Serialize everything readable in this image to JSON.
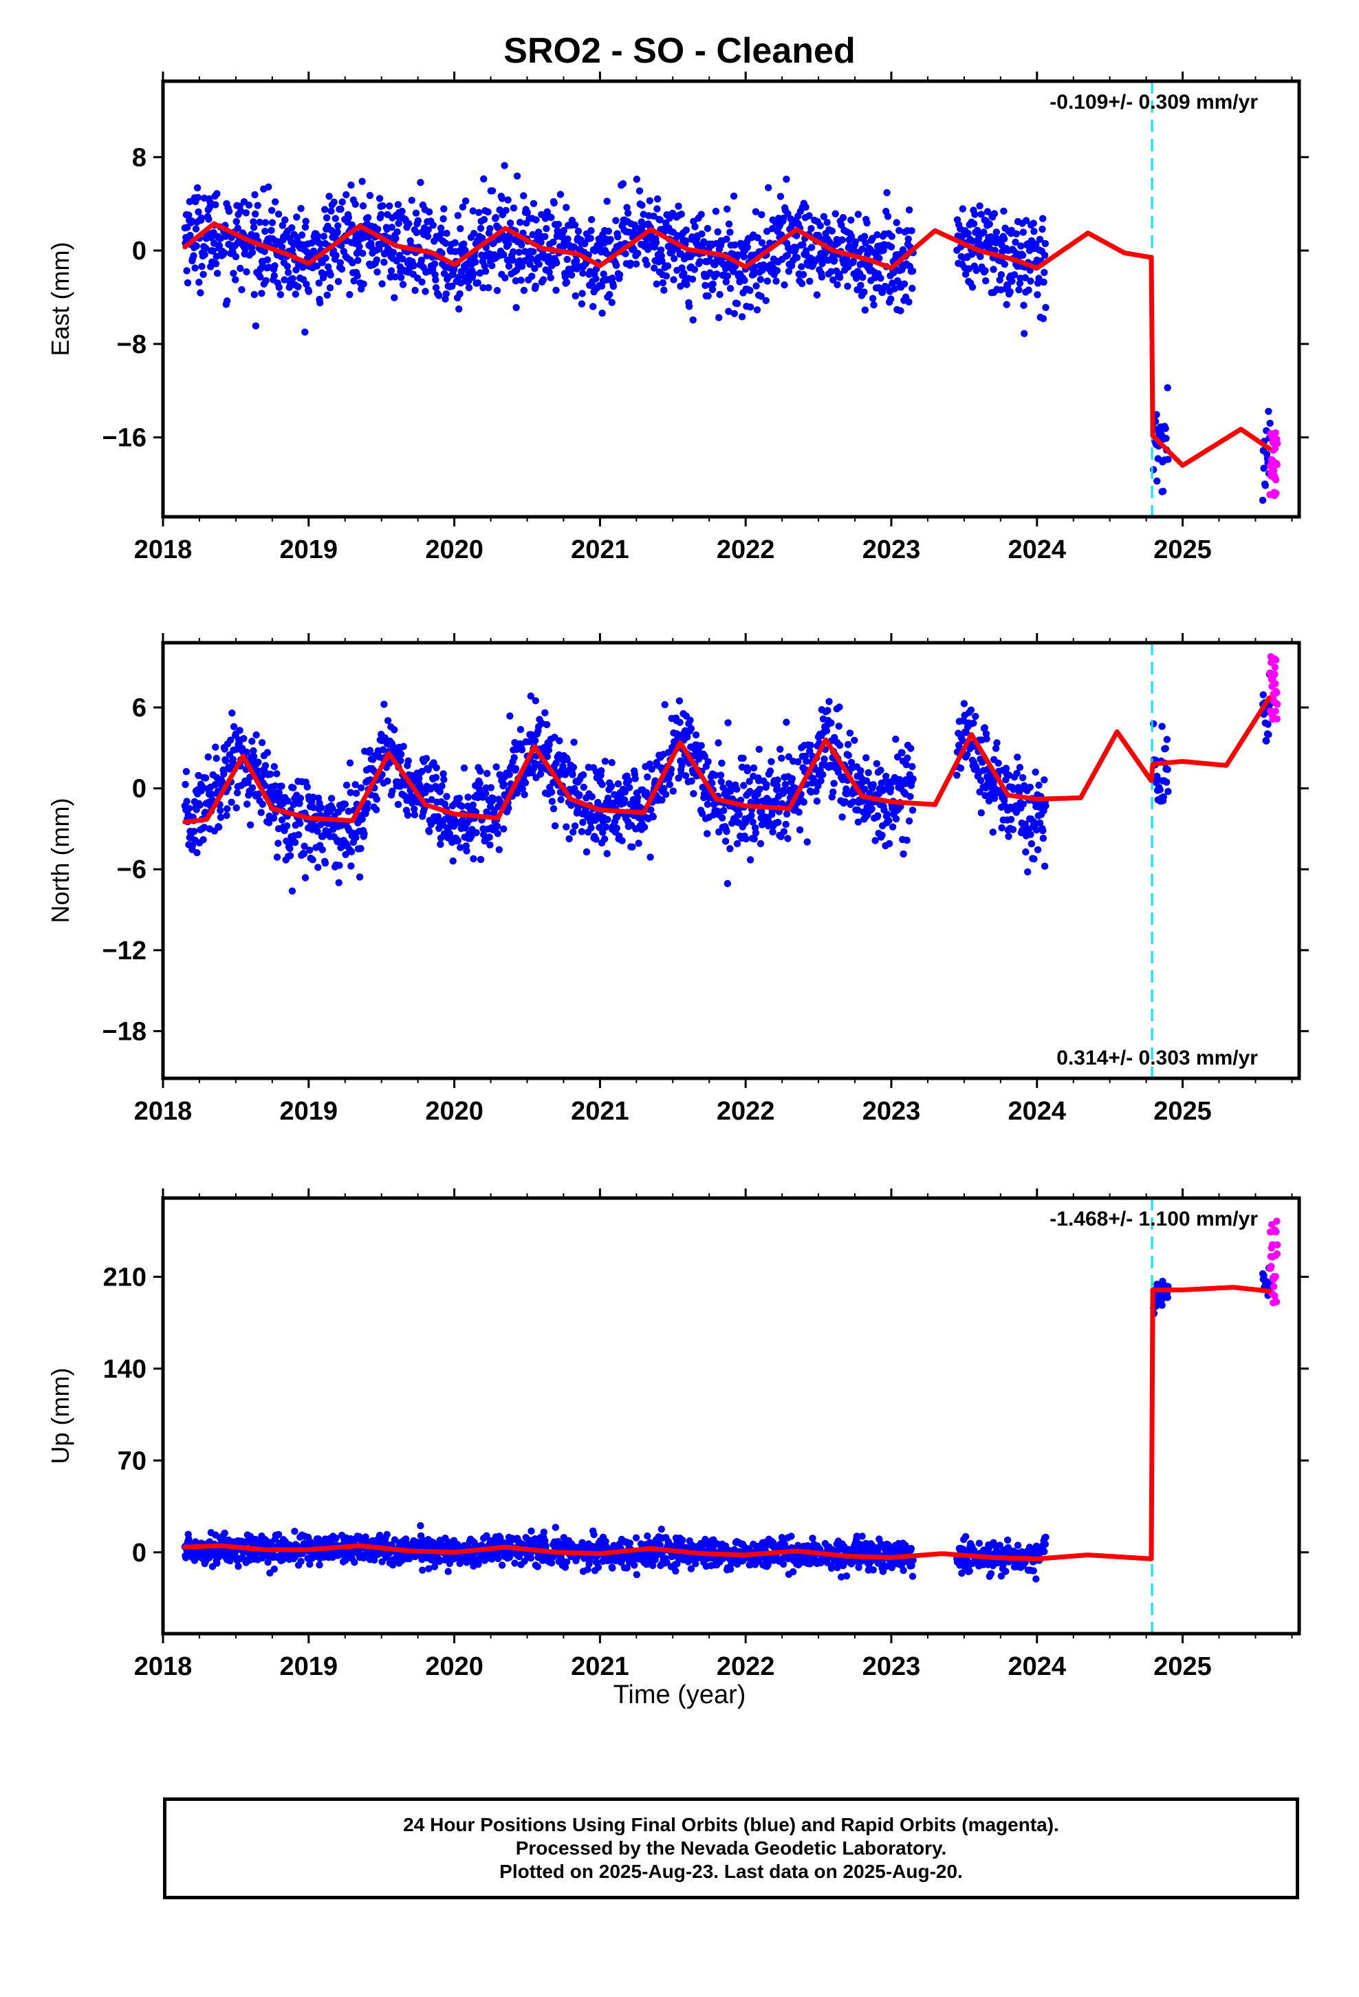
{
  "title": "SRO2  - SO - Cleaned",
  "x_axis_label": "Time (year)",
  "footer": {
    "line1": "24 Hour Positions Using Final Orbits (blue) and Rapid Orbits (magenta).",
    "line2": "Processed by the Nevada Geodetic Laboratory.",
    "line3": "Plotted on 2025-Aug-23. Last data on 2025-Aug-20."
  },
  "colors": {
    "final": "#0000ff",
    "rapid": "#ff00ff",
    "model": "#ff0000",
    "event": "#00e5ee",
    "frame": "#000000"
  },
  "chart_data": [
    {
      "type": "scatter",
      "component": "east",
      "ylabel": "East (mm)",
      "rate_label": "-0.109+/- 0.309 mm/yr",
      "rate_label_position": "top-right",
      "xlim": [
        2018.0,
        2025.8
      ],
      "ylim": [
        -22.8,
        14.5
      ],
      "xticks": [
        2018,
        2019,
        2020,
        2021,
        2022,
        2023,
        2024,
        2025
      ],
      "yticks": [
        8,
        0,
        -8,
        -16
      ],
      "ytick_labels": [
        "8",
        "0",
        "−8",
        "−16"
      ],
      "event_line_x": 2024.79,
      "final_segments": [
        [
          2018.15,
          2023.15
        ],
        [
          2023.45,
          2024.06
        ],
        [
          2024.8,
          2024.9
        ],
        [
          2025.55,
          2025.6
        ]
      ],
      "series": [
        {
          "x": [
            2018.2,
            2018.5,
            2018.8,
            2019.0,
            2019.3,
            2019.6,
            2020.0,
            2020.3,
            2020.6,
            2021.0,
            2021.3,
            2021.6,
            2022.0,
            2022.3,
            2022.6,
            2023.0,
            2023.2,
            2023.5,
            2023.8,
            2024.0,
            2024.85,
            2025.57
          ],
          "values": [
            1.5,
            1.0,
            0.0,
            -1.0,
            1.5,
            0.5,
            -1.0,
            1.5,
            0.0,
            -1.0,
            1.5,
            0.0,
            -1.5,
            1.0,
            0.0,
            -1.5,
            -0.5,
            0.5,
            -0.5,
            -1.0,
            -17.0,
            -17.5
          ]
        },
        {
          "x": [
            2025.6,
            2025.62,
            2025.65
          ],
          "values": [
            -15.5,
            -18.5,
            -21.0
          ]
        },
        {
          "x": [
            2018.15,
            2018.35,
            2018.6,
            2018.85,
            2019.0,
            2019.35,
            2019.6,
            2019.85,
            2020.0,
            2020.35,
            2020.6,
            2020.85,
            2021.0,
            2021.35,
            2021.6,
            2021.85,
            2022.0,
            2022.35,
            2022.6,
            2022.85,
            2023.0,
            2023.3,
            2023.6,
            2023.85,
            2024.0,
            2024.35,
            2024.6,
            2024.789,
            2024.791,
            2025.0,
            2025.4,
            2025.6
          ],
          "values": [
            0.3,
            2.3,
            0.8,
            -0.3,
            -1.1,
            2.1,
            0.4,
            -0.2,
            -1.2,
            1.9,
            0.2,
            -0.3,
            -1.3,
            1.8,
            0.1,
            -0.4,
            -1.4,
            1.8,
            0.0,
            -0.8,
            -1.5,
            1.7,
            0.0,
            -0.8,
            -1.5,
            1.5,
            -0.2,
            -0.6,
            -15.8,
            -18.4,
            -15.3,
            -17.0
          ]
        }
      ]
    },
    {
      "type": "scatter",
      "component": "north",
      "ylabel": "North (mm)",
      "rate_label": "0.314+/- 0.303 mm/yr",
      "rate_label_position": "bottom-right",
      "xlim": [
        2018.0,
        2025.8
      ],
      "ylim": [
        -21.5,
        10.8
      ],
      "xticks": [
        2018,
        2019,
        2020,
        2021,
        2022,
        2023,
        2024,
        2025
      ],
      "yticks": [
        6,
        0,
        -6,
        -12,
        -18
      ],
      "ytick_labels": [
        "6",
        "0",
        "−6",
        "−12",
        "−18"
      ],
      "event_line_x": 2024.79,
      "final_segments": [
        [
          2018.15,
          2023.15
        ],
        [
          2023.45,
          2024.06
        ],
        [
          2024.8,
          2024.9
        ],
        [
          2025.55,
          2025.6
        ]
      ],
      "series": [
        {
          "x": [
            2018.2,
            2018.5,
            2018.8,
            2019.0,
            2019.3,
            2019.5,
            2019.8,
            2020.0,
            2020.3,
            2020.55,
            2020.8,
            2021.0,
            2021.3,
            2021.55,
            2021.8,
            2022.0,
            2022.3,
            2022.55,
            2022.8,
            2023.0,
            2023.5,
            2023.8,
            2024.0,
            2024.85,
            2025.57
          ],
          "values": [
            -2.5,
            2.5,
            -1.5,
            -2.5,
            -3.0,
            2.5,
            -1.0,
            -2.5,
            -1.5,
            3.5,
            -0.5,
            -1.5,
            -1.5,
            3.5,
            -1.0,
            -1.5,
            -1.0,
            3.5,
            -0.5,
            -1.0,
            4.0,
            -1.0,
            -2.0,
            1.5,
            5.5
          ]
        },
        {
          "x": [
            2025.6,
            2025.62,
            2025.65
          ],
          "values": [
            5.0,
            7.5,
            10.0
          ]
        },
        {
          "x": [
            2018.15,
            2018.3,
            2018.55,
            2018.75,
            2019.0,
            2019.3,
            2019.55,
            2019.8,
            2020.0,
            2020.3,
            2020.55,
            2020.8,
            2021.0,
            2021.3,
            2021.55,
            2021.8,
            2022.0,
            2022.3,
            2022.55,
            2022.8,
            2023.0,
            2023.3,
            2023.55,
            2023.8,
            2024.0,
            2024.3,
            2024.55,
            2024.789,
            2024.791,
            2025.0,
            2025.3,
            2025.6
          ],
          "values": [
            -2.5,
            -2.3,
            2.4,
            -1.5,
            -2.2,
            -2.4,
            2.6,
            -1.2,
            -1.9,
            -2.2,
            3.1,
            -0.8,
            -1.6,
            -1.8,
            3.4,
            -0.8,
            -1.3,
            -1.5,
            3.6,
            -0.6,
            -1.0,
            -1.2,
            4.0,
            -0.5,
            -0.8,
            -0.7,
            4.2,
            0.5,
            1.8,
            2.0,
            1.7,
            6.8
          ]
        }
      ]
    },
    {
      "type": "scatter",
      "component": "up",
      "ylabel": "Up (mm)",
      "rate_label": "-1.468+/- 1.100 mm/yr",
      "rate_label_position": "top-right",
      "xlim": [
        2018.0,
        2025.8
      ],
      "ylim": [
        -62,
        270
      ],
      "xticks": [
        2018,
        2019,
        2020,
        2021,
        2022,
        2023,
        2024,
        2025
      ],
      "yticks": [
        210,
        140,
        70,
        0
      ],
      "ytick_labels": [
        "210",
        "140",
        "70",
        "0"
      ],
      "event_line_x": 2024.79,
      "final_segments": [
        [
          2018.15,
          2023.15
        ],
        [
          2023.45,
          2024.06
        ],
        [
          2024.8,
          2024.9
        ],
        [
          2025.55,
          2025.6
        ]
      ],
      "series": [
        {
          "x": [
            2018.2,
            2018.6,
            2019.0,
            2019.4,
            2019.8,
            2020.0,
            2020.4,
            2020.8,
            2021.2,
            2021.6,
            2022.0,
            2022.4,
            2022.8,
            2023.1,
            2023.5,
            2023.8,
            2024.0,
            2024.85,
            2025.57
          ],
          "values": [
            3,
            2,
            2,
            4,
            1,
            0,
            3,
            1,
            -1,
            0,
            -2,
            -1,
            -3,
            -4,
            -3,
            -4,
            -5,
            200,
            204
          ]
        },
        {
          "x": [
            2025.6,
            2025.62,
            2025.65
          ],
          "values": [
            190,
            205,
            255
          ]
        },
        {
          "x": [
            2018.15,
            2018.4,
            2018.7,
            2019.0,
            2019.35,
            2019.7,
            2020.0,
            2020.35,
            2020.7,
            2021.0,
            2021.35,
            2021.7,
            2022.0,
            2022.35,
            2022.7,
            2023.0,
            2023.35,
            2023.7,
            2024.0,
            2024.35,
            2024.789,
            2024.791,
            2025.0,
            2025.35,
            2025.6
          ],
          "values": [
            4,
            5,
            2,
            2,
            5,
            1,
            0,
            4,
            0,
            -1,
            3,
            -1,
            -2,
            1,
            -3,
            -4,
            -1,
            -4,
            -5,
            -2,
            -5,
            200,
            200,
            202,
            199
          ]
        }
      ]
    }
  ]
}
